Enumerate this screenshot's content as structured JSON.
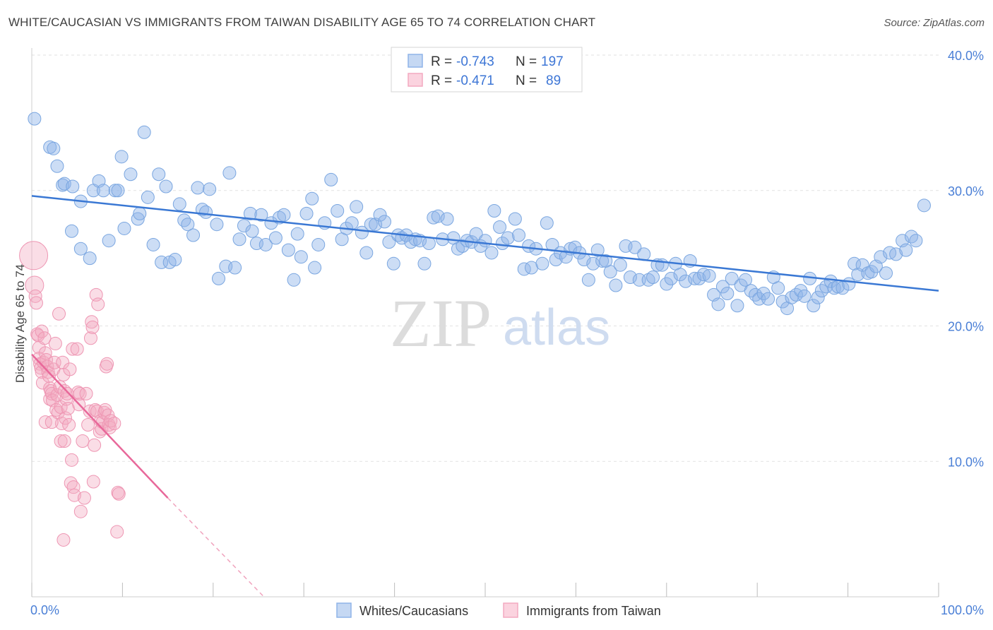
{
  "header": {
    "title": "WHITE/CAUCASIAN VS IMMIGRANTS FROM TAIWAN DISABILITY AGE 65 TO 74 CORRELATION CHART",
    "source": "Source: ZipAtlas.com"
  },
  "watermark": {
    "zip": "ZIP",
    "atlas": "atlas"
  },
  "legend": {
    "rows": [
      {
        "r_label": "R =",
        "r_value": "-0.743",
        "n_label": "N =",
        "n_value": "197",
        "color": "#8fb4e8"
      },
      {
        "r_label": "R =",
        "r_value": "-0.471",
        "n_label": "N =",
        "n_value": "89",
        "color": "#f3a9c0"
      }
    ]
  },
  "bottom_legend": {
    "items": [
      {
        "label": "Whites/Caucasians",
        "color": "#8fb4e8"
      },
      {
        "label": "Immigrants from Taiwan",
        "color": "#f3a9c0"
      }
    ]
  },
  "chart_data": {
    "type": "scatter",
    "title": "WHITE/CAUCASIAN VS IMMIGRANTS FROM TAIWAN DISABILITY AGE 65 TO 74 CORRELATION CHART",
    "xlabel": "",
    "ylabel": "Disability Age 65 to 74",
    "xlim": [
      0,
      100
    ],
    "ylim": [
      0,
      40
    ],
    "x_tick_labels": [
      "0.0%",
      "100.0%"
    ],
    "y_ticks": [
      10,
      20,
      30,
      40
    ],
    "y_tick_labels": [
      "10.0%",
      "20.0%",
      "30.0%",
      "40.0%"
    ],
    "grid": true,
    "legend_position": "top-center",
    "series": [
      {
        "name": "Whites/Caucasians",
        "color": "#4a85d8",
        "trend": {
          "x": [
            0,
            100
          ],
          "y": [
            29.6,
            22.6
          ],
          "style": "solid"
        },
        "points": [
          [
            0.3,
            35.3
          ],
          [
            2,
            33.2
          ],
          [
            2.4,
            33.1
          ],
          [
            2.8,
            31.8
          ],
          [
            3.4,
            30.4
          ],
          [
            3.6,
            30.5
          ],
          [
            4.5,
            30.3
          ],
          [
            4.4,
            27.0
          ],
          [
            5.4,
            29.2
          ],
          [
            5.4,
            25.7
          ],
          [
            6.4,
            25.0
          ],
          [
            6.8,
            30.0
          ],
          [
            7.4,
            30.7
          ],
          [
            7.9,
            30.0
          ],
          [
            8.5,
            26.3
          ],
          [
            9.2,
            30.0
          ],
          [
            9.5,
            30.0
          ],
          [
            9.9,
            32.5
          ],
          [
            10.2,
            27.2
          ],
          [
            10.9,
            31.2
          ],
          [
            11.7,
            27.9
          ],
          [
            11.9,
            28.3
          ],
          [
            12.4,
            34.3
          ],
          [
            12.8,
            29.5
          ],
          [
            13.4,
            26.0
          ],
          [
            14,
            31.2
          ],
          [
            14.3,
            24.7
          ],
          [
            14.8,
            30.3
          ],
          [
            15.2,
            24.7
          ],
          [
            15.8,
            24.9
          ],
          [
            16.3,
            29.0
          ],
          [
            16.8,
            27.8
          ],
          [
            17.2,
            27.5
          ],
          [
            17.8,
            26.7
          ],
          [
            18.3,
            30.2
          ],
          [
            18.8,
            28.6
          ],
          [
            19.2,
            28.4
          ],
          [
            19.6,
            30.1
          ],
          [
            20.4,
            27.5
          ],
          [
            20.6,
            23.5
          ],
          [
            21.4,
            24.4
          ],
          [
            21.8,
            31.3
          ],
          [
            22.4,
            24.3
          ],
          [
            22.9,
            26.4
          ],
          [
            23.4,
            27.4
          ],
          [
            24.1,
            28.3
          ],
          [
            24.3,
            27.0
          ],
          [
            24.8,
            26.1
          ],
          [
            25.3,
            28.2
          ],
          [
            25.8,
            26.0
          ],
          [
            26.4,
            27.6
          ],
          [
            26.9,
            26.5
          ],
          [
            27.3,
            28.0
          ],
          [
            27.8,
            28.2
          ],
          [
            28.3,
            25.6
          ],
          [
            28.9,
            23.4
          ],
          [
            29.3,
            26.8
          ],
          [
            29.7,
            25.1
          ],
          [
            30.3,
            28.3
          ],
          [
            30.9,
            29.4
          ],
          [
            31.2,
            24.3
          ],
          [
            31.6,
            26.0
          ],
          [
            32.3,
            27.6
          ],
          [
            33,
            30.8
          ],
          [
            33.7,
            28.5
          ],
          [
            34.2,
            26.4
          ],
          [
            34.7,
            27.2
          ],
          [
            35.3,
            27.6
          ],
          [
            35.8,
            28.8
          ],
          [
            36.4,
            26.9
          ],
          [
            36.9,
            25.4
          ],
          [
            37.4,
            27.5
          ],
          [
            37.9,
            27.5
          ],
          [
            38.4,
            28.2
          ],
          [
            38.9,
            27.7
          ],
          [
            39.4,
            26.2
          ],
          [
            39.9,
            24.6
          ],
          [
            40.4,
            26.7
          ],
          [
            40.8,
            26.5
          ],
          [
            41.3,
            26.7
          ],
          [
            41.8,
            26.2
          ],
          [
            42.3,
            26.4
          ],
          [
            42.8,
            26.3
          ],
          [
            43.3,
            24.6
          ],
          [
            43.8,
            26.1
          ],
          [
            44.3,
            28.0
          ],
          [
            44.8,
            28.1
          ],
          [
            45.3,
            26.4
          ],
          [
            45.8,
            27.9
          ],
          [
            46.5,
            26.5
          ],
          [
            47,
            25.7
          ],
          [
            47.5,
            25.9
          ],
          [
            48,
            26.3
          ],
          [
            48.5,
            26.2
          ],
          [
            49,
            26.8
          ],
          [
            49.5,
            25.9
          ],
          [
            50,
            26.3
          ],
          [
            50.7,
            25.4
          ],
          [
            51,
            28.5
          ],
          [
            51.6,
            27.3
          ],
          [
            51.9,
            26.1
          ],
          [
            52.5,
            26.5
          ],
          [
            53.3,
            27.9
          ],
          [
            53.7,
            26.7
          ],
          [
            54.3,
            24.2
          ],
          [
            54.8,
            25.9
          ],
          [
            55.1,
            24.3
          ],
          [
            55.6,
            25.7
          ],
          [
            56.3,
            24.6
          ],
          [
            56.8,
            27.6
          ],
          [
            57.4,
            26.0
          ],
          [
            57.8,
            24.9
          ],
          [
            58.3,
            25.4
          ],
          [
            58.9,
            25.1
          ],
          [
            59.4,
            25.7
          ],
          [
            59.9,
            25.8
          ],
          [
            60.4,
            25.4
          ],
          [
            60.9,
            24.9
          ],
          [
            61.4,
            23.4
          ],
          [
            61.9,
            24.6
          ],
          [
            62.4,
            25.6
          ],
          [
            62.9,
            24.8
          ],
          [
            63.3,
            24.8
          ],
          [
            63.8,
            24.0
          ],
          [
            64.4,
            23.0
          ],
          [
            64.9,
            24.5
          ],
          [
            65.5,
            25.9
          ],
          [
            66,
            23.6
          ],
          [
            66.5,
            25.8
          ],
          [
            67,
            23.4
          ],
          [
            67.5,
            25.3
          ],
          [
            68,
            23.4
          ],
          [
            68.5,
            23.6
          ],
          [
            69,
            24.5
          ],
          [
            69.5,
            24.5
          ],
          [
            70,
            23.1
          ],
          [
            70.5,
            23.5
          ],
          [
            71,
            24.6
          ],
          [
            71.5,
            23.8
          ],
          [
            72.1,
            23.3
          ],
          [
            72.6,
            24.8
          ],
          [
            73.1,
            23.5
          ],
          [
            73.6,
            23.5
          ],
          [
            74.1,
            23.8
          ],
          [
            74.7,
            23.7
          ],
          [
            75.2,
            22.3
          ],
          [
            75.7,
            21.6
          ],
          [
            76.2,
            22.9
          ],
          [
            76.7,
            22.4
          ],
          [
            77.2,
            23.5
          ],
          [
            77.8,
            21.5
          ],
          [
            78.2,
            23.0
          ],
          [
            78.7,
            23.4
          ],
          [
            79.3,
            22.6
          ],
          [
            79.8,
            22.3
          ],
          [
            80.2,
            22.0
          ],
          [
            80.7,
            22.4
          ],
          [
            81.2,
            22.0
          ],
          [
            81.8,
            23.6
          ],
          [
            82.3,
            22.8
          ],
          [
            82.8,
            21.8
          ],
          [
            83.3,
            21.3
          ],
          [
            83.8,
            22.1
          ],
          [
            84.3,
            22.3
          ],
          [
            84.8,
            22.6
          ],
          [
            85.2,
            22.2
          ],
          [
            85.8,
            23.5
          ],
          [
            86.2,
            21.5
          ],
          [
            86.7,
            22.1
          ],
          [
            87.1,
            22.6
          ],
          [
            87.6,
            22.9
          ],
          [
            88.1,
            23.3
          ],
          [
            88.5,
            22.8
          ],
          [
            88.9,
            22.9
          ],
          [
            89.4,
            22.8
          ],
          [
            90.1,
            23.1
          ],
          [
            90.7,
            24.6
          ],
          [
            91.1,
            23.8
          ],
          [
            91.6,
            24.5
          ],
          [
            92.2,
            23.9
          ],
          [
            92.6,
            24.0
          ],
          [
            93.1,
            24.4
          ],
          [
            93.6,
            25.1
          ],
          [
            94.2,
            23.9
          ],
          [
            94.6,
            25.4
          ],
          [
            95.3,
            25.3
          ],
          [
            96,
            26.3
          ],
          [
            96.4,
            25.6
          ],
          [
            97,
            26.6
          ],
          [
            97.5,
            26.3
          ],
          [
            98.4,
            28.9
          ]
        ]
      },
      {
        "name": "Immigrants from Taiwan",
        "color": "#e8689a",
        "trend": {
          "x": [
            0,
            15
          ],
          "y": [
            17.9,
            7.3
          ],
          "style": "solid",
          "dashed_to": [
            25.6,
            0
          ]
        },
        "points": [
          [
            0.2,
            25.2
          ],
          [
            0.3,
            23.0
          ],
          [
            0.4,
            22.2
          ],
          [
            0.5,
            21.7
          ],
          [
            0.6,
            19.4
          ],
          [
            0.7,
            19.3
          ],
          [
            0.8,
            18.4
          ],
          [
            0.8,
            17.6
          ],
          [
            0.9,
            17.2
          ],
          [
            1.0,
            16.9
          ],
          [
            1.1,
            16.6
          ],
          [
            1.2,
            15.8
          ],
          [
            1.1,
            19.6
          ],
          [
            1.3,
            17.3
          ],
          [
            1.4,
            19.1
          ],
          [
            1.5,
            18.0
          ],
          [
            1.6,
            17.5
          ],
          [
            1.7,
            17.0
          ],
          [
            1.8,
            16.6
          ],
          [
            1.9,
            16.3
          ],
          [
            2.0,
            15.4
          ],
          [
            2.0,
            14.6
          ],
          [
            2.1,
            15.2
          ],
          [
            2.2,
            15.0
          ],
          [
            2.3,
            14.5
          ],
          [
            2.4,
            16.8
          ],
          [
            2.5,
            17.3
          ],
          [
            2.6,
            18.7
          ],
          [
            2.7,
            13.8
          ],
          [
            2.8,
            14.9
          ],
          [
            2.9,
            13.6
          ],
          [
            3.0,
            20.9
          ],
          [
            3.1,
            15.5
          ],
          [
            3.2,
            14.0
          ],
          [
            3.3,
            12.8
          ],
          [
            3.4,
            17.3
          ],
          [
            3.5,
            16.4
          ],
          [
            3.6,
            15.2
          ],
          [
            3.7,
            13.2
          ],
          [
            3.8,
            14.6
          ],
          [
            3.9,
            15.0
          ],
          [
            4.0,
            13.9
          ],
          [
            4.1,
            12.7
          ],
          [
            4.2,
            16.8
          ],
          [
            4.3,
            8.4
          ],
          [
            4.4,
            10.1
          ],
          [
            4.5,
            18.3
          ],
          [
            4.6,
            8.1
          ],
          [
            4.7,
            7.5
          ],
          [
            5.0,
            18.3
          ],
          [
            5.1,
            15.1
          ],
          [
            5.2,
            14.2
          ],
          [
            5.3,
            15.0
          ],
          [
            5.4,
            6.3
          ],
          [
            5.6,
            11.5
          ],
          [
            5.8,
            7.3
          ],
          [
            6.0,
            15.0
          ],
          [
            6.2,
            12.7
          ],
          [
            6.4,
            13.7
          ],
          [
            6.5,
            19.1
          ],
          [
            6.6,
            20.3
          ],
          [
            6.7,
            19.9
          ],
          [
            6.8,
            8.5
          ],
          [
            6.9,
            11.2
          ],
          [
            7.0,
            13.8
          ],
          [
            7.1,
            22.3
          ],
          [
            7.2,
            13.7
          ],
          [
            7.3,
            21.6
          ],
          [
            7.5,
            12.2
          ],
          [
            7.6,
            13.0
          ],
          [
            7.7,
            12.4
          ],
          [
            7.8,
            12.9
          ],
          [
            8.0,
            13.6
          ],
          [
            8.1,
            13.8
          ],
          [
            8.2,
            17.0
          ],
          [
            8.3,
            17.2
          ],
          [
            8.4,
            13.4
          ],
          [
            8.5,
            12.7
          ],
          [
            8.6,
            12.5
          ],
          [
            8.7,
            13.0
          ],
          [
            9.1,
            12.8
          ],
          [
            9.4,
            4.8
          ],
          [
            9.5,
            7.7
          ],
          [
            9.6,
            7.6
          ],
          [
            3.2,
            11.5
          ],
          [
            3.6,
            11.5
          ],
          [
            1.5,
            12.9
          ],
          [
            3.5,
            4.2
          ],
          [
            2.2,
            12.9
          ]
        ]
      }
    ]
  }
}
